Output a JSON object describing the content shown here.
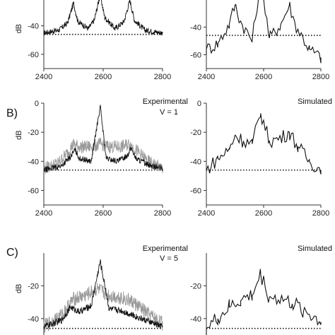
{
  "figure": {
    "panel_labels": [
      "B)",
      "C)"
    ],
    "label_experimental": "Experimental",
    "label_simulated": "Simulated",
    "v1_text": "V = 1",
    "v5_text": "V =  5"
  },
  "chart_data": [
    {
      "id": "A-exp",
      "type": "line",
      "ylabel": "dB",
      "xlim": [
        2400,
        2800
      ],
      "ylim": [
        -70,
        0
      ],
      "xticks": [
        "2400",
        "2600",
        "2800"
      ],
      "yticks": [
        "-40",
        "-60"
      ],
      "reference_level": -46,
      "series": [
        {
          "shape": "fine",
          "values": [
            [
              2400,
              -45
            ],
            [
              2450,
              -43
            ],
            [
              2480,
              -38
            ],
            [
              2500,
              -24
            ],
            [
              2515,
              -37
            ],
            [
              2550,
              -42
            ],
            [
              2570,
              -36
            ],
            [
              2590,
              -18
            ],
            [
              2605,
              -34
            ],
            [
              2640,
              -42
            ],
            [
              2670,
              -37
            ],
            [
              2690,
              -22
            ],
            [
              2705,
              -36
            ],
            [
              2740,
              -43
            ],
            [
              2800,
              -45
            ]
          ]
        }
      ]
    },
    {
      "id": "A-sim",
      "type": "line",
      "xlim": [
        2400,
        2800
      ],
      "ylim": [
        -70,
        0
      ],
      "xticks": [
        "2400",
        "2600",
        "2800"
      ],
      "yticks": [
        "-40",
        "-60"
      ],
      "reference_level": -46,
      "series": [
        {
          "shape": "coarse",
          "values": [
            [
              2400,
              -56
            ],
            [
              2440,
              -52
            ],
            [
              2480,
              -38
            ],
            [
              2500,
              -24
            ],
            [
              2520,
              -36
            ],
            [
              2560,
              -50
            ],
            [
              2590,
              -5
            ],
            [
              2620,
              -48
            ],
            [
              2660,
              -38
            ],
            [
              2690,
              -24
            ],
            [
              2710,
              -38
            ],
            [
              2760,
              -56
            ],
            [
              2800,
              -62
            ]
          ]
        }
      ]
    },
    {
      "id": "B-exp",
      "type": "line",
      "ylabel": "dB",
      "xlim": [
        2400,
        2800
      ],
      "ylim": [
        -70,
        0
      ],
      "xticks": [
        "2400",
        "2600",
        "2800"
      ],
      "yticks": [
        "0",
        "-20",
        "-40",
        "-60"
      ],
      "reference_level": -46,
      "series": [
        {
          "shape": "fine-grey",
          "values": [
            [
              2400,
              -45
            ],
            [
              2450,
              -41
            ],
            [
              2480,
              -34
            ],
            [
              2500,
              -28
            ],
            [
              2520,
              -30
            ],
            [
              2560,
              -30
            ],
            [
              2590,
              -28
            ],
            [
              2620,
              -30
            ],
            [
              2660,
              -30
            ],
            [
              2690,
              -28
            ],
            [
              2710,
              -32
            ],
            [
              2750,
              -40
            ],
            [
              2800,
              -45
            ]
          ]
        },
        {
          "shape": "fine",
          "values": [
            [
              2400,
              -46
            ],
            [
              2460,
              -43
            ],
            [
              2490,
              -37
            ],
            [
              2505,
              -32
            ],
            [
              2520,
              -38
            ],
            [
              2560,
              -40
            ],
            [
              2590,
              -2
            ],
            [
              2610,
              -38
            ],
            [
              2650,
              -40
            ],
            [
              2680,
              -36
            ],
            [
              2695,
              -31
            ],
            [
              2710,
              -38
            ],
            [
              2760,
              -43
            ],
            [
              2800,
              -45
            ]
          ]
        }
      ]
    },
    {
      "id": "B-sim",
      "type": "line",
      "xlim": [
        2400,
        2800
      ],
      "ylim": [
        -70,
        0
      ],
      "xticks": [
        "2400",
        "2600",
        "2800"
      ],
      "yticks": [
        "0",
        "-20",
        "-40",
        "-60"
      ],
      "reference_level": -46,
      "series": [
        {
          "shape": "coarse",
          "values": [
            [
              2400,
              -46
            ],
            [
              2440,
              -38
            ],
            [
              2480,
              -32
            ],
            [
              2500,
              -22
            ],
            [
              2530,
              -26
            ],
            [
              2560,
              -28
            ],
            [
              2590,
              -7
            ],
            [
              2620,
              -26
            ],
            [
              2660,
              -24
            ],
            [
              2690,
              -20
            ],
            [
              2720,
              -30
            ],
            [
              2760,
              -40
            ],
            [
              2800,
              -46
            ]
          ]
        }
      ]
    },
    {
      "id": "C-exp",
      "type": "line",
      "ylabel": "dB",
      "xlim": [
        2400,
        2800
      ],
      "ylim": [
        -50,
        0
      ],
      "xticks": [],
      "yticks": [
        "-20",
        "-40"
      ],
      "reference_level": -46,
      "series": [
        {
          "shape": "fine-grey",
          "values": [
            [
              2400,
              -45
            ],
            [
              2460,
              -38
            ],
            [
              2500,
              -28
            ],
            [
              2540,
              -26
            ],
            [
              2580,
              -22
            ],
            [
              2620,
              -26
            ],
            [
              2660,
              -27
            ],
            [
              2700,
              -30
            ],
            [
              2750,
              -37
            ],
            [
              2800,
              -43
            ]
          ]
        },
        {
          "shape": "fine",
          "values": [
            [
              2400,
              -45
            ],
            [
              2460,
              -41
            ],
            [
              2490,
              -33
            ],
            [
              2520,
              -36
            ],
            [
              2560,
              -32
            ],
            [
              2590,
              -5
            ],
            [
              2620,
              -34
            ],
            [
              2660,
              -35
            ],
            [
              2700,
              -38
            ],
            [
              2800,
              -45
            ]
          ]
        }
      ]
    },
    {
      "id": "C-sim",
      "type": "line",
      "xlim": [
        2400,
        2800
      ],
      "ylim": [
        -50,
        0
      ],
      "xticks": [],
      "yticks": [
        "-20",
        "-40"
      ],
      "reference_level": -46,
      "series": [
        {
          "shape": "coarse",
          "values": [
            [
              2400,
              -46
            ],
            [
              2440,
              -40
            ],
            [
              2480,
              -33
            ],
            [
              2520,
              -29
            ],
            [
              2560,
              -26
            ],
            [
              2590,
              -13
            ],
            [
              2620,
              -27
            ],
            [
              2660,
              -28
            ],
            [
              2700,
              -31
            ],
            [
              2740,
              -35
            ],
            [
              2800,
              -42
            ]
          ]
        }
      ]
    }
  ]
}
